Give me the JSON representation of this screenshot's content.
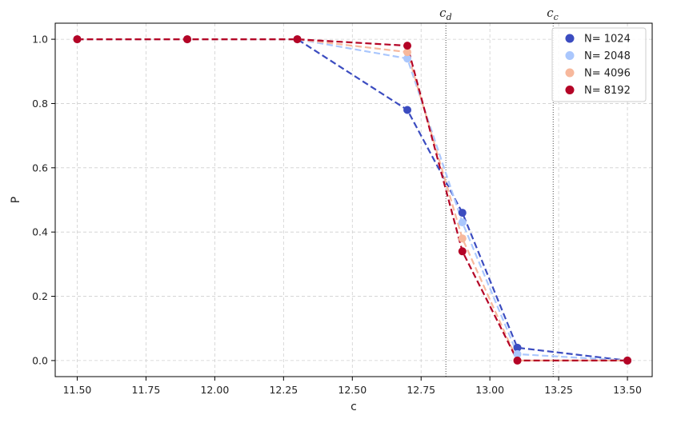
{
  "chart_data": {
    "type": "line",
    "title": "",
    "xlabel": "c",
    "ylabel": "P",
    "xlim": [
      11.42,
      13.59
    ],
    "ylim": [
      -0.05,
      1.05
    ],
    "xticks": [
      11.5,
      11.75,
      12.0,
      12.25,
      12.5,
      12.75,
      13.0,
      13.25,
      13.5
    ],
    "xtick_labels": [
      "11.50",
      "11.75",
      "12.00",
      "12.25",
      "12.50",
      "12.75",
      "13.00",
      "13.25",
      "13.50"
    ],
    "yticks": [
      0.0,
      0.2,
      0.4,
      0.6,
      0.8,
      1.0
    ],
    "ytick_labels": [
      "0.0",
      "0.2",
      "0.4",
      "0.6",
      "0.8",
      "1.0"
    ],
    "grid": true,
    "legend_position": "top-right",
    "x": [
      11.5,
      11.9,
      12.3,
      12.7,
      12.9,
      13.1,
      13.5
    ],
    "series": [
      {
        "name": "N= 1024",
        "color": "#3b4cc0",
        "values": [
          1.0,
          1.0,
          1.0,
          0.78,
          0.46,
          0.04,
          0.0
        ]
      },
      {
        "name": "N= 2048",
        "color": "#aac7fd",
        "values": [
          1.0,
          1.0,
          1.0,
          0.94,
          0.43,
          0.02,
          0.0
        ]
      },
      {
        "name": "N= 4096",
        "color": "#f7b89c",
        "values": [
          1.0,
          1.0,
          1.0,
          0.96,
          0.38,
          0.0,
          0.0
        ]
      },
      {
        "name": "N= 8192",
        "color": "#b40426",
        "values": [
          1.0,
          1.0,
          1.0,
          0.98,
          0.34,
          0.0,
          0.0
        ]
      }
    ],
    "vertical_lines": [
      {
        "label": "c_d",
        "x": 12.84
      },
      {
        "label": "c_c",
        "x": 13.23
      }
    ]
  }
}
